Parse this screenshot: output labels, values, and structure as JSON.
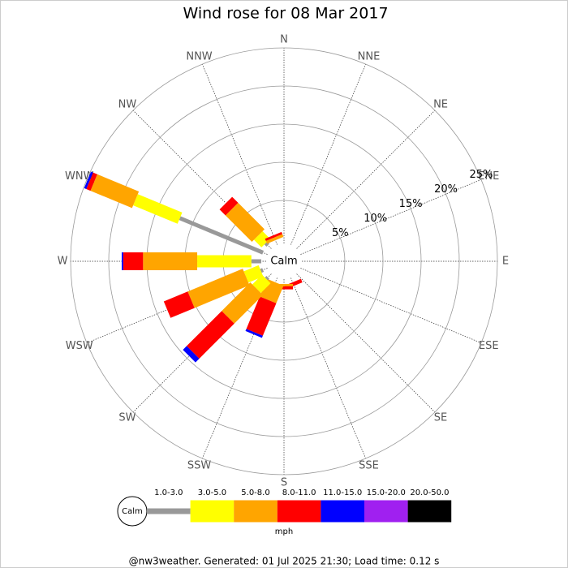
{
  "chart_data": {
    "type": "windrose",
    "title": "Wind rose for 08 Mar 2017",
    "directions": [
      "N",
      "NNE",
      "NE",
      "ENE",
      "E",
      "ESE",
      "SE",
      "SSE",
      "S",
      "SSW",
      "SW",
      "WSW",
      "W",
      "WNW",
      "NW",
      "NNW"
    ],
    "calm_label": "Calm",
    "rlim": [
      0,
      25
    ],
    "rticks": [
      {
        "value": 5,
        "label": "5%"
      },
      {
        "value": 10,
        "label": "10%"
      },
      {
        "value": 15,
        "label": "15%"
      },
      {
        "value": 20,
        "label": "20%"
      },
      {
        "value": 25,
        "label": "25%"
      }
    ],
    "series": [
      {
        "name": "1.0-3.0",
        "color": "#999999",
        "values": [
          0,
          0,
          0,
          0,
          0,
          0,
          0,
          0,
          0,
          0,
          0.3,
          0.3,
          1.3,
          11.8,
          0.4,
          0
        ]
      },
      {
        "name": "3.0-5.0",
        "color": "#ffff00",
        "values": [
          0,
          0,
          0,
          0,
          0,
          0,
          0,
          0,
          0,
          0,
          1.8,
          2.1,
          7.1,
          6.3,
          1.4,
          0
        ]
      },
      {
        "name": "5.0-8.0",
        "color": "#ffa500",
        "values": [
          0,
          0,
          0,
          0,
          0,
          0,
          0,
          0,
          0.3,
          2.5,
          5.3,
          7.8,
          7.1,
          5.9,
          4.9,
          0.4
        ]
      },
      {
        "name": "8.0-11.0",
        "color": "#ff0000",
        "values": [
          0,
          0,
          0,
          0,
          0,
          0,
          0,
          0.5,
          0.4,
          4.6,
          6.5,
          3.4,
          2.6,
          0.6,
          1.1,
          0.3
        ]
      },
      {
        "name": "11.0-15.0",
        "color": "#0000ff",
        "values": [
          0,
          0,
          0,
          0,
          0,
          0,
          0,
          0,
          0,
          0.3,
          0.7,
          0,
          0.2,
          0.3,
          0,
          0
        ]
      },
      {
        "name": "15.0-20.0",
        "color": "#a020f0",
        "values": [
          0,
          0,
          0,
          0,
          0,
          0,
          0,
          0,
          0,
          0,
          0,
          0,
          0,
          0,
          0,
          0
        ]
      },
      {
        "name": "20.0-50.0",
        "color": "#000000",
        "values": [
          0,
          0,
          0,
          0,
          0,
          0,
          0,
          0,
          0,
          0,
          0,
          0,
          0,
          0,
          0,
          0
        ]
      }
    ],
    "legend_unit": "mph",
    "footer": "@nw3weather. Generated: 01 Jul 2025 21:30; Load time: 0.12 s"
  }
}
